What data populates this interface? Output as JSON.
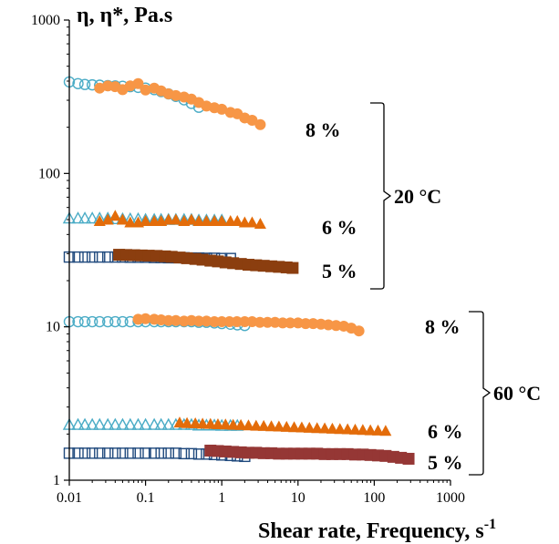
{
  "chart_data": {
    "type": "scatter",
    "title": "",
    "xlabel": "Shear rate, Frequency, s",
    "xlabel_superscript": "-1",
    "ylabel": "η, η*, Pa.s",
    "x_scale": "log",
    "y_scale": "log",
    "xlim": [
      0.01,
      1000
    ],
    "ylim": [
      1,
      1000
    ],
    "x_ticks": [
      "0.01",
      "0.1",
      "1",
      "10",
      "100",
      "1000"
    ],
    "y_ticks": [
      "1",
      "10",
      "100",
      "1000"
    ],
    "grid": false,
    "legend": "none",
    "annotations": {
      "c20_8": "8 %",
      "c20_6": "6 %",
      "c20_5": "5 %",
      "g20": "20 °C",
      "c60_8": "8 %",
      "c60_6": "6 %",
      "c60_5": "5 %",
      "g60": "60 °C"
    },
    "series": [
      {
        "marker": "open-circle",
        "color": "#4bacc6",
        "x": [
          0.01,
          0.013,
          0.016,
          0.02,
          0.025,
          0.032,
          0.04,
          0.05,
          0.063,
          0.08,
          0.1,
          0.13,
          0.16,
          0.2,
          0.25,
          0.32,
          0.4,
          0.5
        ],
        "y": [
          395,
          385,
          380,
          378,
          376,
          374,
          372,
          370,
          368,
          364,
          360,
          352,
          342,
          330,
          318,
          302,
          286,
          270
        ]
      },
      {
        "marker": "filled-circle",
        "color": "#f79646",
        "x": [
          0.025,
          0.032,
          0.04,
          0.05,
          0.063,
          0.08,
          0.1,
          0.13,
          0.16,
          0.2,
          0.25,
          0.32,
          0.4,
          0.5,
          0.63,
          0.8,
          1.0,
          1.3,
          1.6,
          2.0,
          2.5,
          3.2
        ],
        "y": [
          360,
          372,
          368,
          352,
          372,
          385,
          350,
          360,
          345,
          330,
          322,
          315,
          305,
          290,
          275,
          268,
          262,
          250,
          245,
          230,
          222,
          208
        ]
      },
      {
        "marker": "open-triangle",
        "color": "#4bacc6",
        "x": [
          0.01,
          0.013,
          0.016,
          0.02,
          0.025,
          0.032,
          0.04,
          0.05,
          0.063,
          0.08,
          0.1,
          0.13,
          0.16,
          0.2,
          0.25,
          0.32,
          0.4,
          0.5,
          0.63,
          0.8,
          1.0
        ],
        "y": [
          51,
          51,
          51,
          51,
          51,
          51,
          50.5,
          50.5,
          50.5,
          50.5,
          50,
          50,
          50,
          50,
          50,
          50,
          50,
          49.5,
          49.5,
          49.5,
          49.5
        ]
      },
      {
        "marker": "filled-triangle",
        "color": "#e36c0a",
        "x": [
          0.025,
          0.032,
          0.04,
          0.05,
          0.063,
          0.08,
          0.1,
          0.13,
          0.16,
          0.2,
          0.25,
          0.32,
          0.4,
          0.5,
          0.63,
          0.8,
          1.0,
          1.3,
          1.6,
          2.0,
          2.5,
          3.2
        ],
        "y": [
          49,
          50,
          53,
          50,
          48,
          48,
          49,
          49,
          49,
          50,
          50,
          49,
          50,
          49,
          49,
          49,
          49,
          49,
          49,
          48,
          48,
          47
        ]
      },
      {
        "marker": "open-square",
        "color": "#1f497d",
        "x": [
          0.01,
          0.013,
          0.016,
          0.02,
          0.025,
          0.032,
          0.04,
          0.05,
          0.063,
          0.08,
          0.1,
          0.13,
          0.16,
          0.2,
          0.25,
          0.32,
          0.4,
          0.5,
          0.63,
          0.8,
          1.0,
          1.3
        ],
        "y": [
          28.5,
          28.5,
          28.5,
          28.5,
          28.5,
          28.5,
          28.5,
          28.5,
          28.4,
          28.4,
          28.4,
          28.3,
          28.3,
          28.2,
          28.2,
          28.2,
          28.1,
          28.1,
          28.0,
          28.0,
          27.9,
          27.9
        ]
      },
      {
        "marker": "filled-square",
        "color": "#8b3e0f",
        "x": [
          0.045,
          0.056,
          0.071,
          0.089,
          0.11,
          0.14,
          0.18,
          0.22,
          0.28,
          0.35,
          0.45,
          0.56,
          0.71,
          0.89,
          1.12,
          1.41,
          1.78,
          2.24,
          2.82,
          3.55,
          4.47,
          5.62,
          7.08,
          8.5
        ],
        "y": [
          29.5,
          29.4,
          29.3,
          29.2,
          29.1,
          29.0,
          28.8,
          28.6,
          28.3,
          28.0,
          27.7,
          27.4,
          27.0,
          26.7,
          26.3,
          26.0,
          25.7,
          25.4,
          25.2,
          25.0,
          24.8,
          24.6,
          24.4,
          24.2
        ]
      },
      {
        "marker": "open-circle",
        "color": "#4bacc6",
        "x": [
          0.01,
          0.013,
          0.016,
          0.02,
          0.025,
          0.032,
          0.04,
          0.05,
          0.063,
          0.08,
          0.1,
          0.13,
          0.16,
          0.2,
          0.25,
          0.32,
          0.4,
          0.5,
          0.63,
          0.8,
          1.0,
          1.3,
          1.6,
          2.0
        ],
        "y": [
          10.8,
          10.8,
          10.8,
          10.8,
          10.8,
          10.8,
          10.8,
          10.8,
          10.8,
          10.8,
          10.8,
          10.8,
          10.8,
          10.8,
          10.8,
          10.8,
          10.8,
          10.7,
          10.7,
          10.6,
          10.5,
          10.4,
          10.3,
          10.2
        ]
      },
      {
        "marker": "filled-circle",
        "color": "#f79646",
        "x": [
          0.08,
          0.1,
          0.13,
          0.16,
          0.2,
          0.25,
          0.32,
          0.4,
          0.5,
          0.63,
          0.8,
          1.0,
          1.26,
          1.58,
          2.0,
          2.5,
          3.16,
          3.98,
          5.0,
          6.3,
          7.9,
          10,
          12.6,
          15.8,
          20,
          25,
          31.6,
          39.8,
          50,
          63
        ],
        "y": [
          11.2,
          11.3,
          11.2,
          11.1,
          11.0,
          11.0,
          10.9,
          11.0,
          10.9,
          10.9,
          10.8,
          10.8,
          10.8,
          10.8,
          10.8,
          10.8,
          10.7,
          10.7,
          10.7,
          10.6,
          10.6,
          10.6,
          10.5,
          10.5,
          10.4,
          10.3,
          10.2,
          10.1,
          9.8,
          9.4
        ]
      },
      {
        "marker": "open-triangle",
        "color": "#4bacc6",
        "x": [
          0.01,
          0.013,
          0.016,
          0.02,
          0.025,
          0.032,
          0.04,
          0.05,
          0.063,
          0.08,
          0.1,
          0.13,
          0.16,
          0.2,
          0.25,
          0.32,
          0.4,
          0.5,
          0.63,
          0.8,
          1.0,
          1.3,
          1.6
        ],
        "y": [
          2.3,
          2.3,
          2.3,
          2.3,
          2.3,
          2.3,
          2.3,
          2.3,
          2.3,
          2.3,
          2.3,
          2.3,
          2.3,
          2.3,
          2.3,
          2.3,
          2.3,
          2.28,
          2.28,
          2.28,
          2.27,
          2.27,
          2.27
        ]
      },
      {
        "marker": "filled-triangle",
        "color": "#e36c0a",
        "x": [
          0.28,
          0.35,
          0.45,
          0.56,
          0.71,
          0.89,
          1.12,
          1.41,
          1.78,
          2.24,
          2.82,
          3.55,
          4.47,
          5.62,
          7.08,
          8.9,
          11.2,
          14.1,
          17.8,
          22.4,
          28.2,
          35.5,
          44.7,
          56.2,
          70.8,
          89,
          112,
          141
        ],
        "y": [
          2.38,
          2.36,
          2.35,
          2.34,
          2.33,
          2.32,
          2.31,
          2.3,
          2.29,
          2.28,
          2.27,
          2.26,
          2.25,
          2.24,
          2.23,
          2.22,
          2.21,
          2.2,
          2.19,
          2.18,
          2.17,
          2.16,
          2.15,
          2.14,
          2.13,
          2.12,
          2.11,
          2.1
        ]
      },
      {
        "marker": "open-square",
        "color": "#1f497d",
        "x": [
          0.01,
          0.013,
          0.016,
          0.02,
          0.025,
          0.032,
          0.04,
          0.05,
          0.063,
          0.08,
          0.1,
          0.13,
          0.16,
          0.2,
          0.25,
          0.32,
          0.4,
          0.5,
          0.63,
          0.8,
          1.0,
          1.3,
          1.6,
          2.0
        ],
        "y": [
          1.5,
          1.5,
          1.5,
          1.5,
          1.5,
          1.5,
          1.5,
          1.5,
          1.5,
          1.5,
          1.5,
          1.5,
          1.5,
          1.5,
          1.5,
          1.49,
          1.49,
          1.48,
          1.48,
          1.47,
          1.46,
          1.45,
          1.44,
          1.43
        ]
      },
      {
        "marker": "filled-square",
        "color": "#953735",
        "x": [
          0.71,
          0.89,
          1.12,
          1.41,
          1.78,
          2.24,
          2.82,
          3.55,
          4.47,
          5.62,
          7.08,
          8.9,
          11.2,
          14.1,
          17.8,
          22.4,
          28.2,
          35.5,
          44.7,
          56.2,
          70.8,
          89,
          112,
          141,
          178,
          224,
          282
        ],
        "y": [
          1.56,
          1.55,
          1.54,
          1.53,
          1.52,
          1.51,
          1.51,
          1.5,
          1.5,
          1.49,
          1.49,
          1.49,
          1.49,
          1.49,
          1.49,
          1.48,
          1.48,
          1.48,
          1.48,
          1.47,
          1.47,
          1.46,
          1.45,
          1.44,
          1.42,
          1.4,
          1.38
        ]
      }
    ]
  }
}
